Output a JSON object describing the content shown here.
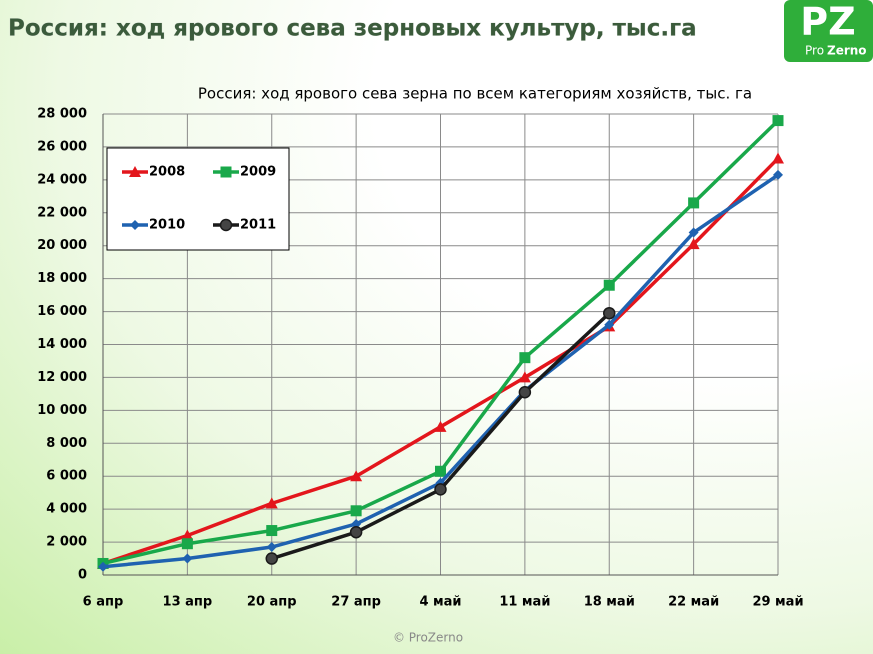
{
  "header": {
    "title": "Россия: ход ярового сева зерновых культур, тыс.га",
    "logo_mark": "PZ",
    "logo_pro": "Pro",
    "logo_zerno": "Zerno"
  },
  "chart_data": {
    "type": "line",
    "title": "Россия: ход ярового сева зерна по всем категориям хозяйств, тыс. га",
    "categories": [
      "6 апр",
      "13 апр",
      "20 апр",
      "27 апр",
      "4 май",
      "11 май",
      "18 май",
      "22 май",
      "29 май"
    ],
    "series": [
      {
        "name": "2008",
        "color": "#e3161c",
        "marker": "triangle",
        "values": [
          700,
          2400,
          4350,
          6000,
          9000,
          12000,
          15100,
          20100,
          25300
        ]
      },
      {
        "name": "2009",
        "color": "#19a84a",
        "marker": "square",
        "values": [
          700,
          1900,
          2700,
          3900,
          6300,
          13200,
          17600,
          22600,
          27600
        ]
      },
      {
        "name": "2010",
        "color": "#1f62b0",
        "marker": "diamond",
        "values": [
          500,
          1000,
          1700,
          3100,
          5600,
          11200,
          15200,
          20800,
          24300
        ]
      },
      {
        "name": "2011",
        "color": "#1a1a1a",
        "marker": "circle",
        "values": [
          null,
          null,
          1000,
          2600,
          5200,
          11100,
          15900,
          null,
          null
        ]
      }
    ],
    "ylim": [
      0,
      28000
    ],
    "yticks": [
      0,
      {
        "value": 2000,
        "label": "2 000"
      },
      {
        "value": 4000,
        "label": "4 000"
      },
      {
        "value": 6000,
        "label": "6 000"
      },
      {
        "value": 8000,
        "label": "8 000"
      },
      {
        "value": 10000,
        "label": "10 000"
      },
      {
        "value": 12000,
        "label": "12 000"
      },
      {
        "value": 14000,
        "label": "14 000"
      },
      {
        "value": 16000,
        "label": "16 000"
      },
      {
        "value": 18000,
        "label": "18 000"
      },
      {
        "value": 20000,
        "label": "20 000"
      },
      {
        "value": 22000,
        "label": "22 000"
      },
      {
        "value": 24000,
        "label": "24 000"
      },
      {
        "value": 26000,
        "label": "26 000"
      },
      {
        "value": 28000,
        "label": "28 000"
      }
    ],
    "grid": true,
    "legend": "upper left"
  },
  "footer": "© ProZerno"
}
